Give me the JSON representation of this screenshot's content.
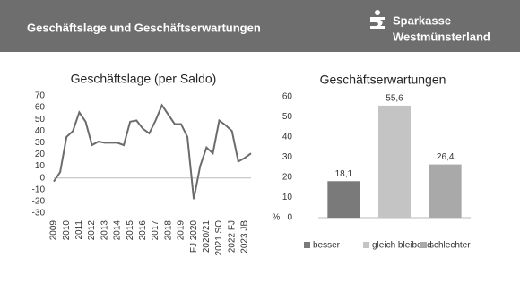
{
  "header": {
    "title": "Geschäftslage und Geschäftserwartungen",
    "logo_line1": "Sparkasse",
    "logo_line2": "Westmünsterland"
  },
  "chart_data": [
    {
      "type": "line",
      "title": "Geschäftslage (per Saldo)",
      "categories": [
        "2009",
        null,
        "2010",
        null,
        "2011",
        null,
        "2012",
        null,
        "2013",
        null,
        "2014",
        null,
        "2015",
        null,
        "2016",
        null,
        "2017",
        null,
        "2018",
        null,
        "2019",
        null,
        "FJ 2020",
        null,
        "2020/21",
        null,
        "2021 SO",
        null,
        "2022 FJ",
        null,
        "2023 JB",
        null
      ],
      "values": [
        -3,
        5,
        35,
        40,
        56,
        48,
        28,
        31,
        30,
        30,
        30,
        28,
        48,
        49,
        42,
        38,
        49,
        62,
        54,
        46,
        46,
        35,
        -18,
        10,
        26,
        21,
        49,
        45,
        40,
        14,
        17,
        21
      ],
      "color": "#6b6b6b",
      "ylim": [
        -30,
        70
      ],
      "yticks": [
        -30,
        -20,
        -10,
        0,
        10,
        20,
        30,
        40,
        50,
        60,
        70
      ]
    },
    {
      "type": "bar",
      "title": "Geschäftserwartungen",
      "categories": [
        "besser",
        "gleich bleibend",
        "schlechter"
      ],
      "values": [
        18.1,
        55.6,
        26.4
      ],
      "value_labels": [
        "18,1",
        "55,6",
        "26,4"
      ],
      "colors": [
        "#7a7a7a",
        "#c4c4c4",
        "#a9a9a9"
      ],
      "y_label": "%",
      "ylim": [
        0,
        60
      ],
      "yticks": [
        0,
        10,
        20,
        30,
        40,
        50,
        60
      ]
    }
  ]
}
